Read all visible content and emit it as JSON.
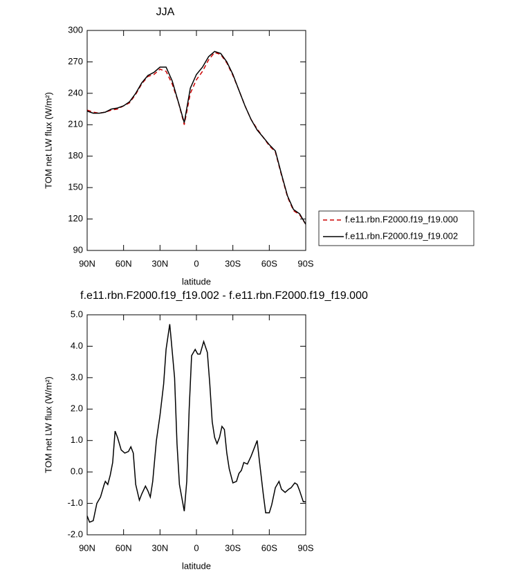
{
  "chart_data": [
    {
      "type": "line",
      "title": "JJA",
      "x_label": "latitude",
      "y_label": "TOM net LW flux (W/m²)",
      "x": [
        90,
        85,
        80,
        75,
        70,
        65,
        60,
        55,
        50,
        45,
        40,
        35,
        30,
        25,
        20,
        15,
        10,
        5,
        0,
        -5,
        -10,
        -15,
        -20,
        -25,
        -30,
        -35,
        -40,
        -45,
        -50,
        -55,
        -60,
        -65,
        -70,
        -75,
        -80,
        -85,
        -90
      ],
      "series": [
        {
          "name": "f.e11.rbn.F2000.f19_f19.000",
          "color": "#cc0000",
          "dashed": true,
          "values": [
            224,
            222,
            221,
            222,
            224,
            225,
            228,
            231,
            239,
            249,
            256,
            258,
            263,
            261,
            249,
            232,
            210,
            240,
            253,
            261,
            272,
            279,
            277,
            269,
            257,
            243,
            228,
            215,
            206,
            198,
            190,
            184,
            162,
            141,
            128,
            124,
            115
          ]
        },
        {
          "name": "f.e11.rbn.F2000.f19_f19.002",
          "color": "#000000",
          "dashed": false,
          "values": [
            223,
            221,
            221,
            222,
            225,
            226,
            228,
            232,
            240,
            250,
            257,
            260,
            265,
            265,
            252,
            232,
            212,
            245,
            258,
            265,
            275,
            280,
            278,
            270,
            258,
            243,
            228,
            215,
            205,
            198,
            191,
            185,
            163,
            142,
            129,
            125,
            115
          ]
        }
      ],
      "xlim": [
        90,
        -90
      ],
      "xticks": [
        {
          "value": 90,
          "label": "90N"
        },
        {
          "value": 60,
          "label": "60N"
        },
        {
          "value": 30,
          "label": "30N"
        },
        0,
        {
          "value": -30,
          "label": "30S"
        },
        {
          "value": -60,
          "label": "60S"
        },
        {
          "value": -90,
          "label": "90S"
        }
      ],
      "ylim": [
        90,
        300
      ],
      "yticks": [
        90,
        120,
        150,
        180,
        210,
        240,
        270,
        300
      ],
      "legend": "right"
    },
    {
      "type": "line",
      "title": "f.e11.rbn.F2000.f19_f19.002 - f.e11.rbn.F2000.f19_f19.000",
      "x_label": "latitude",
      "y_label": "TOM net LW flux (W/m²)",
      "x": [
        90,
        88,
        85,
        82,
        79,
        76,
        75,
        73,
        71,
        69,
        67,
        65,
        62,
        59,
        56,
        54,
        52,
        50,
        47,
        45,
        42,
        40,
        38,
        36,
        33,
        30,
        27,
        25,
        22,
        21,
        18,
        16,
        14,
        10,
        8,
        6,
        4,
        1,
        -1,
        -3,
        -6,
        -9,
        -11,
        -13,
        -15,
        -17,
        -19,
        -21,
        -23,
        -25,
        -27,
        -30,
        -33,
        -35,
        -37,
        -39,
        -42,
        -45,
        -48,
        -50,
        -52,
        -55,
        -57,
        -60,
        -62,
        -65,
        -68,
        -70,
        -73,
        -76,
        -78,
        -81,
        -83,
        -85,
        -88,
        -90
      ],
      "series": [
        {
          "color": "#000000",
          "dashed": false,
          "values": [
            -1.4,
            -1.6,
            -1.55,
            -1.0,
            -0.8,
            -0.4,
            -0.3,
            -0.4,
            -0.1,
            0.3,
            1.3,
            1.1,
            0.7,
            0.6,
            0.65,
            0.8,
            0.6,
            -0.4,
            -0.9,
            -0.7,
            -0.45,
            -0.6,
            -0.8,
            -0.3,
            1.0,
            1.8,
            2.8,
            3.9,
            4.7,
            4.3,
            3.0,
            0.9,
            -0.4,
            -1.25,
            -0.3,
            2.0,
            3.7,
            3.9,
            3.75,
            3.75,
            4.15,
            3.8,
            2.8,
            1.6,
            1.1,
            0.9,
            1.1,
            1.45,
            1.35,
            0.6,
            0.1,
            -0.35,
            -0.3,
            -0.05,
            0.05,
            0.3,
            0.25,
            0.5,
            0.8,
            1.0,
            0.3,
            -0.7,
            -1.3,
            -1.3,
            -1.05,
            -0.5,
            -0.3,
            -0.55,
            -0.65,
            -0.55,
            -0.5,
            -0.35,
            -0.4,
            -0.6,
            -0.95,
            -0.95
          ]
        }
      ],
      "xlim": [
        90,
        -90
      ],
      "xticks": [
        {
          "value": 90,
          "label": "90N"
        },
        {
          "value": 60,
          "label": "60N"
        },
        {
          "value": 30,
          "label": "30N"
        },
        0,
        {
          "value": -30,
          "label": "30S"
        },
        {
          "value": -60,
          "label": "60S"
        },
        {
          "value": -90,
          "label": "90S"
        }
      ],
      "ylim": [
        -2,
        5
      ],
      "yticks": [
        {
          "value": -2,
          "label": "-2.0"
        },
        {
          "value": -1,
          "label": "-1.0"
        },
        {
          "value": 0,
          "label": "0.0"
        },
        {
          "value": 1,
          "label": "1.0"
        },
        {
          "value": 2,
          "label": "2.0"
        },
        {
          "value": 3,
          "label": "3.0"
        },
        {
          "value": 4,
          "label": "4.0"
        },
        {
          "value": 5,
          "label": "5.0"
        }
      ]
    }
  ]
}
